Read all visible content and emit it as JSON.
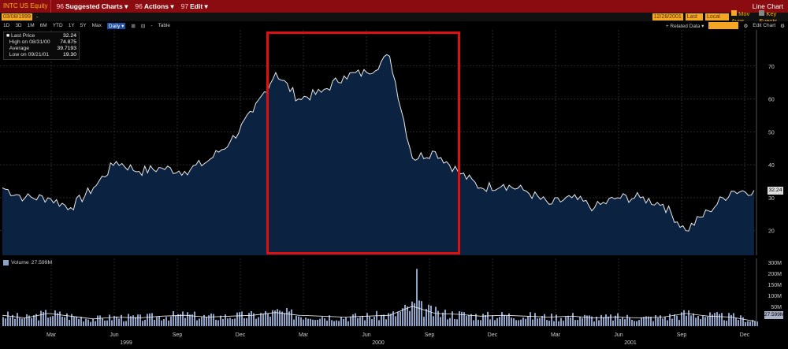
{
  "topbar": {
    "ticker": "INTC US Equity",
    "menus": [
      {
        "num": "96",
        "label": "Suggested Charts",
        "caret": "▾"
      },
      {
        "num": "96",
        "label": "Actions",
        "caret": "▾"
      },
      {
        "num": "97",
        "label": "Edit",
        "caret": "▾"
      }
    ],
    "title": "Line Chart"
  },
  "bar2": {
    "start_date": "03/08/1999",
    "sep": "-",
    "end_date": "12/28/2001",
    "field": "Last Px",
    "currency": "Local CCY",
    "mov_avgs": "Mov Avgs",
    "key_events": "Key Events"
  },
  "bar3": {
    "ranges": [
      "1D",
      "3D",
      "1M",
      "6M",
      "YTD",
      "1Y",
      "5Y",
      "Max"
    ],
    "period": "Daily ▾",
    "icons": [
      "⊞",
      "⊟",
      "-"
    ],
    "table": "Table",
    "related": "+ Related Data ▾",
    "edit_chart": "Edit Chart"
  },
  "legend": {
    "rows": [
      {
        "label": "Last Price",
        "value": "32.24"
      },
      {
        "label": "High on 08/31/00",
        "value": "74.875"
      },
      {
        "label": "Average",
        "value": "39.7193"
      },
      {
        "label": "Low on 09/21/01",
        "value": "19.30"
      }
    ]
  },
  "last_badge": "32.24",
  "volume": {
    "label": "Volume",
    "value": "27.599M",
    "badge": "27.599M",
    "yticks": [
      "300M",
      "200M",
      "150M",
      "100M",
      "50M"
    ]
  },
  "colors": {
    "area_fill": "#0b2240",
    "line": "#e8e8e8",
    "highlight": "#e01010",
    "volume_bar": "#8ea3c8"
  },
  "chart_data": {
    "type": "area",
    "title": "INTC US Equity",
    "ylim": [
      13,
      80
    ],
    "yticks": [
      20,
      30,
      40,
      50,
      60,
      70
    ],
    "x_month_labels": [
      "Mar",
      "Jun",
      "Sep",
      "Dec",
      "Mar",
      "Jun",
      "Sep",
      "Dec",
      "Mar",
      "Jun",
      "Sep",
      "Dec"
    ],
    "x_year_labels": [
      "1999",
      "2000",
      "2001"
    ],
    "series": [
      {
        "name": "Last Price",
        "x": [
          "1999-03",
          "1999-04",
          "1999-05",
          "1999-06",
          "1999-07",
          "1999-08",
          "1999-09",
          "1999-10",
          "1999-11",
          "1999-12",
          "2000-01",
          "2000-02",
          "2000-03",
          "2000-04",
          "2000-05",
          "2000-06",
          "2000-07",
          "2000-08",
          "2000-09",
          "2000-10",
          "2000-11",
          "2000-12",
          "2001-01",
          "2001-02",
          "2001-03",
          "2001-04",
          "2001-05",
          "2001-06",
          "2001-07",
          "2001-08",
          "2001-09",
          "2001-10",
          "2001-11",
          "2001-12"
        ],
        "values": [
          33,
          30,
          30,
          27,
          33,
          41,
          38,
          39,
          38,
          41,
          47,
          56,
          68,
          60,
          62,
          67,
          68,
          73,
          42,
          44,
          38,
          33,
          34,
          32,
          28,
          30,
          27,
          30,
          30,
          28,
          20,
          26,
          32,
          32.24
        ]
      }
    ],
    "volume_ylim": [
      0,
      330
    ],
    "volume_values_M": [
      60,
      45,
      70,
      55,
      40,
      50,
      45,
      55,
      60,
      50,
      55,
      60,
      75,
      60,
      55,
      50,
      55,
      60,
      110,
      70,
      65,
      55,
      60,
      55,
      50,
      55,
      45,
      50,
      45,
      50,
      70,
      55,
      50,
      27.599
    ]
  }
}
